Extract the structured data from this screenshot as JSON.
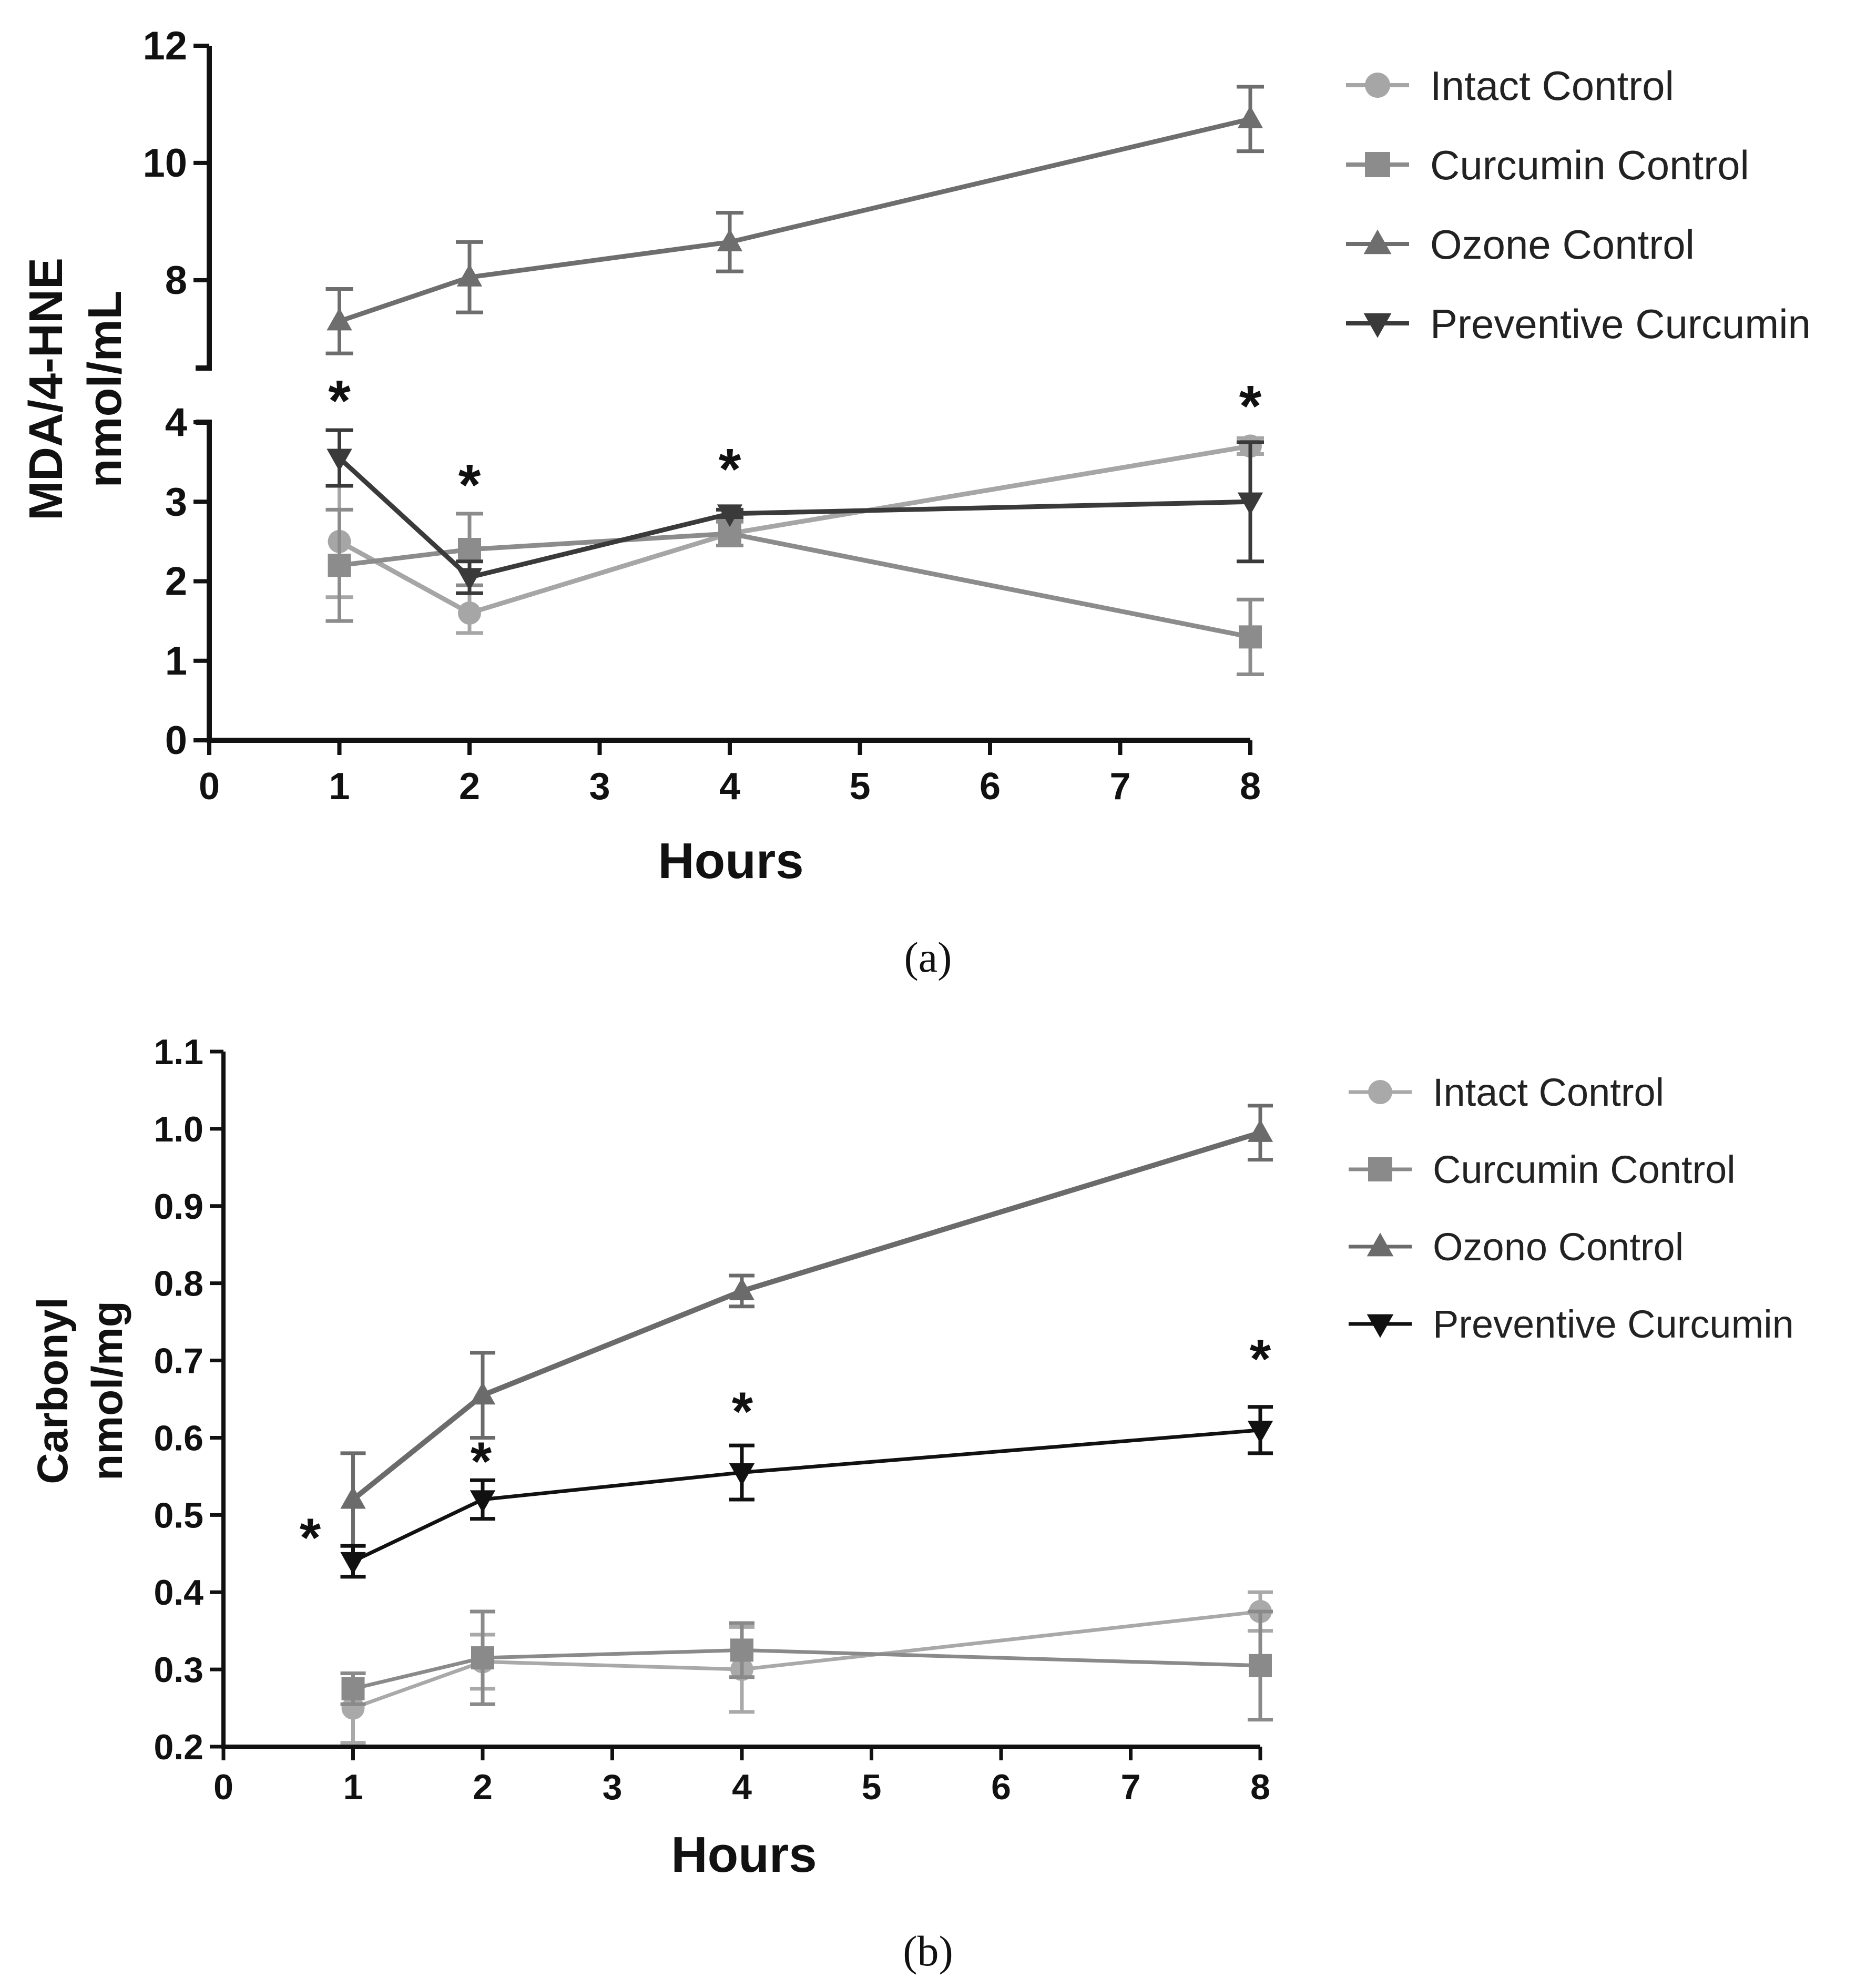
{
  "chart_data": [
    {
      "type": "line",
      "panel_label": "(a)",
      "xlabel": "Hours",
      "ylabel": [
        "MDA/4-HNE",
        "nmol/mL"
      ],
      "x_ticks": [
        "0",
        "1",
        "2",
        "3",
        "4",
        "5",
        "6",
        "7",
        "8"
      ],
      "x_category_positions": [
        1,
        2,
        4,
        8
      ],
      "x_category_labels": [
        "1",
        "2",
        "4",
        "8"
      ],
      "axis_break": true,
      "ylim_lower": [
        0,
        4
      ],
      "ylim_upper": [
        6.5,
        12
      ],
      "yticks_lower": [
        "0",
        "1",
        "2",
        "3",
        "4"
      ],
      "yticks_upper": [
        "8",
        "10",
        "12"
      ],
      "legend_position": "top-right",
      "series": [
        {
          "name": "Intact Control",
          "marker": "circle",
          "color": "#a6a6a6",
          "values": [
            2.5,
            1.6,
            2.6,
            3.7
          ],
          "errors": [
            0.7,
            0.25,
            0.15,
            0.1
          ]
        },
        {
          "name": "Curcumin Control",
          "marker": "square",
          "color": "#8c8c8c",
          "values": [
            2.2,
            2.4,
            2.6,
            1.3
          ],
          "errors": [
            0.7,
            0.45,
            0.15,
            0.47
          ]
        },
        {
          "name": "Ozone Control",
          "marker": "triangle-up",
          "color": "#6e6e6e",
          "values": [
            7.3,
            8.05,
            8.65,
            10.75
          ],
          "errors": [
            0.55,
            0.6,
            0.5,
            0.55
          ]
        },
        {
          "name": "Preventive Curcumin",
          "marker": "triangle-down",
          "color": "#3a3a3a",
          "values": [
            3.55,
            2.05,
            2.85,
            3.0
          ],
          "errors": [
            0.35,
            0.2,
            0.05,
            0.75
          ]
        }
      ],
      "significance": [
        {
          "x": "1",
          "label": "*"
        },
        {
          "x": "2",
          "label": "*"
        },
        {
          "x": "4",
          "label": "*"
        },
        {
          "x": "8",
          "label": "*"
        }
      ]
    },
    {
      "type": "line",
      "panel_label": "(b)",
      "xlabel": "Hours",
      "ylabel": [
        "Carbonyl",
        "nmol/mg"
      ],
      "x_ticks": [
        "0",
        "1",
        "2",
        "3",
        "4",
        "5",
        "6",
        "7",
        "8"
      ],
      "x_category_positions": [
        1,
        2,
        4,
        8
      ],
      "x_category_labels": [
        "1",
        "2",
        "4",
        "8"
      ],
      "ylim": [
        0.2,
        1.1
      ],
      "yticks": [
        "0.2",
        "0.3",
        "0.4",
        "0.5",
        "0.6",
        "0.7",
        "0.8",
        "0.9",
        "1.0",
        "1.1"
      ],
      "legend_position": "top-right",
      "series": [
        {
          "name": "Intact Control",
          "marker": "circle",
          "color": "#a9a9a9",
          "values": [
            0.25,
            0.31,
            0.3,
            0.375
          ],
          "errors": [
            0.045,
            0.035,
            0.055,
            0.025
          ]
        },
        {
          "name": "Curcumin Control",
          "marker": "square",
          "color": "#8a8a8a",
          "values": [
            0.275,
            0.315,
            0.325,
            0.305
          ],
          "errors": [
            0.02,
            0.06,
            0.035,
            0.07
          ]
        },
        {
          "name": "Ozono Control",
          "marker": "triangle-up",
          "color": "#6b6b6b",
          "values": [
            0.52,
            0.655,
            0.79,
            0.995
          ],
          "errors": [
            0.06,
            0.055,
            0.02,
            0.035
          ]
        },
        {
          "name": "Preventive Curcumin",
          "marker": "triangle-down",
          "color": "#111111",
          "values": [
            0.44,
            0.52,
            0.555,
            0.61
          ],
          "errors": [
            0.02,
            0.025,
            0.035,
            0.03
          ]
        }
      ],
      "significance": [
        {
          "x": "1",
          "label": "*"
        },
        {
          "x": "2",
          "label": "*"
        },
        {
          "x": "4",
          "label": "*"
        },
        {
          "x": "8",
          "label": "*"
        }
      ]
    }
  ]
}
